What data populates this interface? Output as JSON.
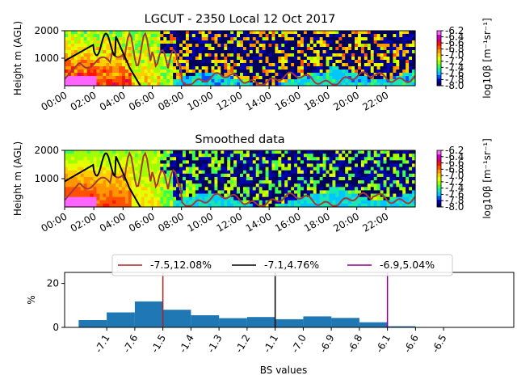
{
  "colors": {
    "heatmap_palette": [
      "#00005a",
      "#0000b4",
      "#0050ff",
      "#00c8ff",
      "#19e6b4",
      "#3cff50",
      "#a0ff00",
      "#e6ff00",
      "#ffcd00",
      "#ff9600",
      "#ff5000",
      "#ff1400",
      "#dc006e",
      "#c800c8",
      "#ff64ff"
    ],
    "layer_line": "#a33a3a",
    "bl_line": "#000000",
    "hist_bar": "#1f77b4",
    "vline_1": "#b22222",
    "vline_2": "#000000",
    "vline_3": "#8b008b"
  },
  "chart_data": [
    {
      "type": "heatmap",
      "title": "LGCUT - 2350 Local 12 Oct 2017",
      "ylabel": "Height m (AGL)",
      "xlabel": "",
      "yticks": [
        "1000",
        "2000"
      ],
      "ylim": [
        0,
        2000
      ],
      "xticks": [
        "00:00",
        "02:00",
        "04:00",
        "06:00",
        "08:00",
        "10:00",
        "12:00",
        "14:00",
        "16:00",
        "18:00",
        "20:00",
        "22:00"
      ],
      "xlim_hours": [
        0,
        24
      ],
      "colorbar": {
        "label": "log10β [m⁻¹sr⁻¹]",
        "ticks": [
          "-6.2",
          "-6.4",
          "-6.6",
          "-6.8",
          "-7.0",
          "-7.2",
          "-7.4",
          "-7.6",
          "-7.8",
          "-8.0"
        ],
        "range": [
          -8.0,
          -6.2
        ]
      }
    },
    {
      "type": "heatmap",
      "title": "Smoothed data",
      "ylabel": "Height m (AGL)",
      "xlabel": "",
      "yticks": [
        "1000",
        "2000"
      ],
      "ylim": [
        0,
        2000
      ],
      "xticks": [
        "00:00",
        "02:00",
        "04:00",
        "06:00",
        "08:00",
        "10:00",
        "12:00",
        "14:00",
        "16:00",
        "18:00",
        "20:00",
        "22:00"
      ],
      "xlim_hours": [
        0,
        24
      ],
      "colorbar": {
        "label": "log10β [m⁻¹sr⁻¹]",
        "ticks": [
          "-6.2",
          "-6.4",
          "-6.6",
          "-6.8",
          "-7.0",
          "-7.2",
          "-7.4",
          "-7.6",
          "-7.8",
          "-8.0"
        ],
        "range": [
          -8.0,
          -6.2
        ]
      }
    },
    {
      "type": "bar",
      "title": "",
      "xlabel": "BS values",
      "ylabel": "%",
      "yticks": [
        "0",
        "20"
      ],
      "ylim": [
        0,
        25
      ],
      "xlim": [
        -7.25,
        -6.45
      ],
      "xticks": [
        "-7.1",
        "-7.6",
        "-1.5",
        "-1.4",
        "-1.3",
        "-1.2",
        "-1.1",
        "-7.0",
        "-6.9",
        "-6.8",
        "-6.1",
        "-6.6",
        "-6.5"
      ],
      "bin_width": 0.05,
      "bins": [
        {
          "x": -7.2,
          "value": 3.3
        },
        {
          "x": -7.15,
          "value": 6.8
        },
        {
          "x": -7.1,
          "value": 11.8
        },
        {
          "x": -7.05,
          "value": 8.0
        },
        {
          "x": -7.0,
          "value": 5.5
        },
        {
          "x": -6.95,
          "value": 4.2
        },
        {
          "x": -6.9,
          "value": 4.7
        },
        {
          "x": -6.85,
          "value": 3.7
        },
        {
          "x": -6.8,
          "value": 5.0
        },
        {
          "x": -6.75,
          "value": 4.3
        },
        {
          "x": -6.7,
          "value": 2.3
        },
        {
          "x": -6.65,
          "value": 0.5
        },
        {
          "x": -6.6,
          "value": 0.2
        }
      ],
      "vlines": [
        {
          "name": "-7.5,12.08%",
          "x": -7.075
        },
        {
          "name": "-7.1,4.76%",
          "x": -6.875
        },
        {
          "name": "-6.9,5.04%",
          "x": -6.675
        }
      ]
    }
  ]
}
